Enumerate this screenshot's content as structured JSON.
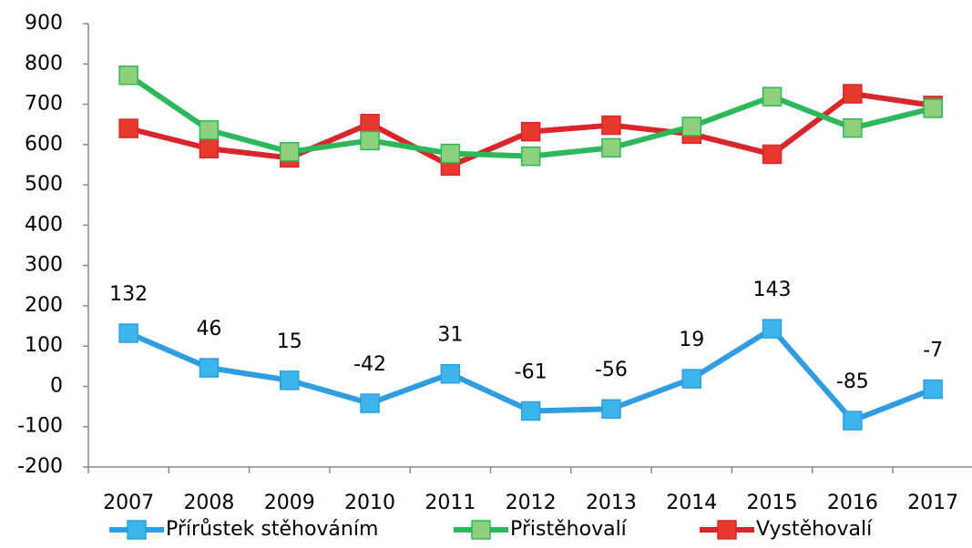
{
  "chart_data": {
    "type": "line",
    "categories": [
      "2007",
      "2008",
      "2009",
      "2010",
      "2011",
      "2012",
      "2013",
      "2014",
      "2015",
      "2016",
      "2017"
    ],
    "series": [
      {
        "name": "Přírůstek stěhováním",
        "color": "#2f9de0",
        "marker_color": "#3db4ec",
        "values": [
          132,
          46,
          15,
          -42,
          31,
          -61,
          -56,
          19,
          143,
          -85,
          -7
        ],
        "data_labels": true
      },
      {
        "name": "Přistěhovalí",
        "color": "#2db85c",
        "marker_color": "#8fd07a",
        "values": [
          772,
          636,
          582,
          610,
          578,
          571,
          592,
          645,
          719,
          641,
          690
        ]
      },
      {
        "name": "Vystěhovalí",
        "color": "#d9262b",
        "marker_color": "#e8392f",
        "values": [
          640,
          590,
          567,
          652,
          547,
          632,
          648,
          626,
          576,
          726,
          697
        ]
      }
    ],
    "ylim": [
      -200,
      900
    ],
    "yticks": [
      -200,
      -100,
      0,
      100,
      200,
      300,
      400,
      500,
      600,
      700,
      800,
      900
    ],
    "grid": false,
    "legend": "bottom"
  }
}
